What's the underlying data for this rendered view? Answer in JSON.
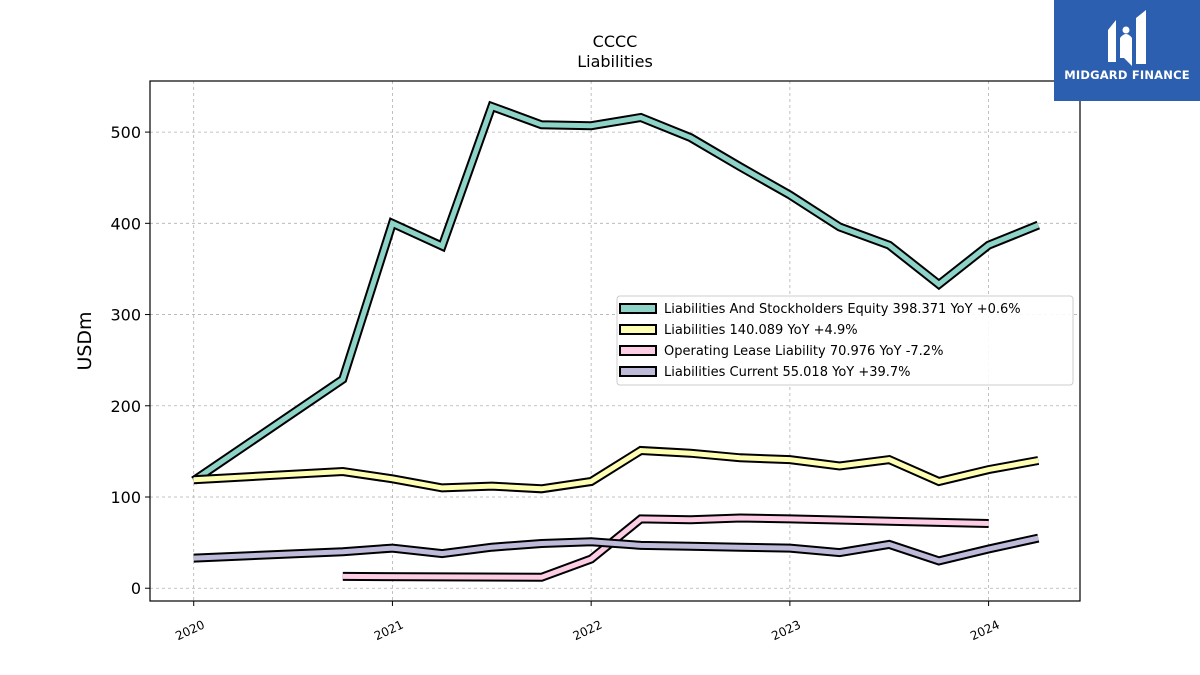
{
  "brand": {
    "name": "MIDGARD FINANCE",
    "bg_color": "#2d5fb0"
  },
  "chart_data": {
    "type": "line",
    "title": "CCCC",
    "subtitle": "Liabilities",
    "ylabel": "USDm",
    "xlabel": "",
    "xlim": [
      2019.78,
      2024.46
    ],
    "ylim": [
      -14,
      556
    ],
    "x_ticks": [
      {
        "value": 2020,
        "label": "2020"
      },
      {
        "value": 2021,
        "label": "2021"
      },
      {
        "value": 2022,
        "label": "2022"
      },
      {
        "value": 2023,
        "label": "2023"
      },
      {
        "value": 2024,
        "label": "2024"
      }
    ],
    "y_ticks": [
      0,
      100,
      200,
      300,
      400,
      500
    ],
    "grid": true,
    "legend_position": "center-right",
    "series": [
      {
        "name": "Liabilities And Stockholders Equity",
        "legend": "Liabilities And Stockholders Equity  398.371 YoY +0.6%",
        "color": "#8dd3c7",
        "x": [
          2020.0,
          2020.75,
          2021.0,
          2021.25,
          2021.5,
          2021.75,
          2022.0,
          2022.25,
          2022.5,
          2022.75,
          2023.0,
          2023.25,
          2023.5,
          2023.75,
          2024.0,
          2024.25
        ],
        "y": [
          118,
          229,
          400,
          375,
          528,
          508,
          507,
          516,
          494,
          462,
          431,
          396,
          376,
          333,
          376,
          398
        ]
      },
      {
        "name": "Liabilities",
        "legend": "Liabilities  140.089 YoY +4.9%",
        "color": "#ffffb3",
        "x": [
          2020.0,
          2020.75,
          2021.0,
          2021.25,
          2021.5,
          2021.75,
          2022.0,
          2022.25,
          2022.5,
          2022.75,
          2023.0,
          2023.25,
          2023.5,
          2023.75,
          2024.0,
          2024.25
        ],
        "y": [
          119,
          128,
          120,
          110,
          112,
          109,
          117,
          151,
          148,
          143,
          141,
          134,
          141,
          117,
          130,
          140
        ]
      },
      {
        "name": "Operating Lease Liability",
        "legend": "Operating Lease Liability  70.976 YoY -7.2%",
        "color": "#fccde5",
        "x": [
          2020.75,
          2021.75,
          2022.0,
          2022.25,
          2022.5,
          2022.75,
          2023.0,
          2024.0
        ],
        "y": [
          13,
          12,
          32,
          76,
          75,
          77,
          76,
          71
        ]
      },
      {
        "name": "Liabilities Current",
        "legend": "Liabilities Current  55.018 YoY +39.7%",
        "color": "#bebada",
        "x": [
          2020.0,
          2020.75,
          2021.0,
          2021.25,
          2021.5,
          2021.75,
          2022.0,
          2022.25,
          2022.5,
          2022.75,
          2023.0,
          2023.25,
          2023.5,
          2023.75,
          2024.0,
          2024.25
        ],
        "y": [
          33,
          40,
          44,
          38,
          45,
          49,
          51,
          47,
          46,
          45,
          44,
          39,
          48,
          30,
          43,
          55
        ]
      }
    ]
  }
}
